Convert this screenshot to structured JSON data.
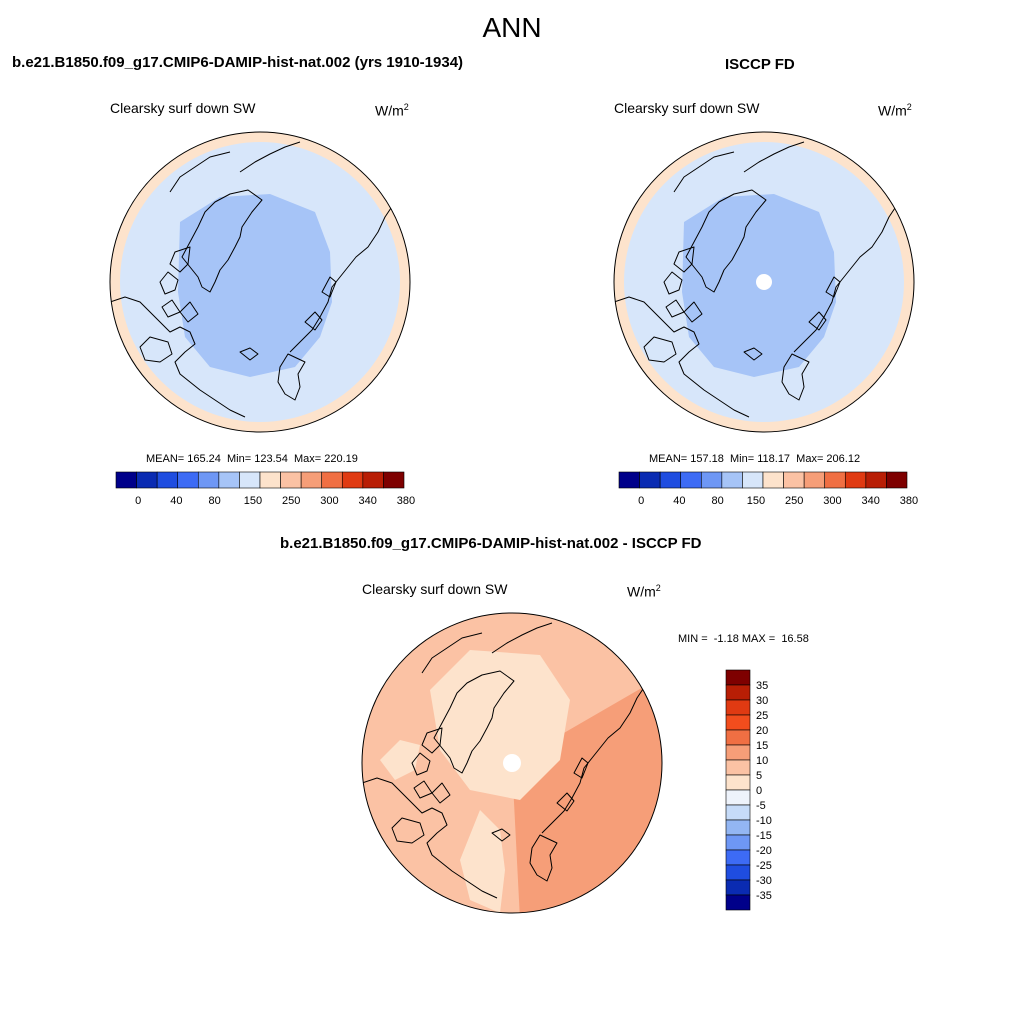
{
  "figure": {
    "title": "ANN"
  },
  "panels": [
    {
      "title": "b.e21.B1850.f09_g17.CMIP6-DAMIP-hist-nat.002 (yrs 1910-1934)",
      "variable": "Clearsky surf down SW",
      "units_base": "W/m",
      "units_exp": "2",
      "stats": "MEAN= 165.24  Min= 123.54  Max= 220.19"
    },
    {
      "title": "ISCCP FD",
      "variable": "Clearsky surf down SW",
      "units_base": "W/m",
      "units_exp": "2",
      "stats": "MEAN= 157.18  Min= 118.17  Max= 206.12"
    },
    {
      "title": "b.e21.B1850.f09_g17.CMIP6-DAMIP-hist-nat.002 - ISCCP FD",
      "variable": "Clearsky surf down SW",
      "units_base": "W/m",
      "units_exp": "2",
      "stats": "MIN =  -1.18 MAX =  16.58"
    }
  ],
  "colorbar_abs": {
    "colors": [
      "#00008a",
      "#0a2bb2",
      "#1f4de0",
      "#3d6bf5",
      "#6e97f5",
      "#a6c4f7",
      "#d7e6fa",
      "#fde3cc",
      "#fbc2a4",
      "#f69e78",
      "#f06f43",
      "#e03a12",
      "#b81e05",
      "#7e0000"
    ],
    "labels": [
      "0",
      "40",
      "80",
      "150",
      "250",
      "300",
      "340",
      "380"
    ]
  },
  "colorbar_diff": {
    "colors": [
      "#7e0000",
      "#b81e05",
      "#e03a12",
      "#f24d1d",
      "#f06f43",
      "#f69e78",
      "#fbc2a4",
      "#fde3cc",
      "#eef3fb",
      "#c6dbf8",
      "#93b6f3",
      "#6e97f5",
      "#3d6bf5",
      "#1f4de0",
      "#0a2bb2",
      "#00008a"
    ],
    "labels": [
      "35",
      "30",
      "25",
      "20",
      "15",
      "10",
      "5",
      "0",
      "-5",
      "-10",
      "-15",
      "-20",
      "-25",
      "-30",
      "-35"
    ]
  }
}
